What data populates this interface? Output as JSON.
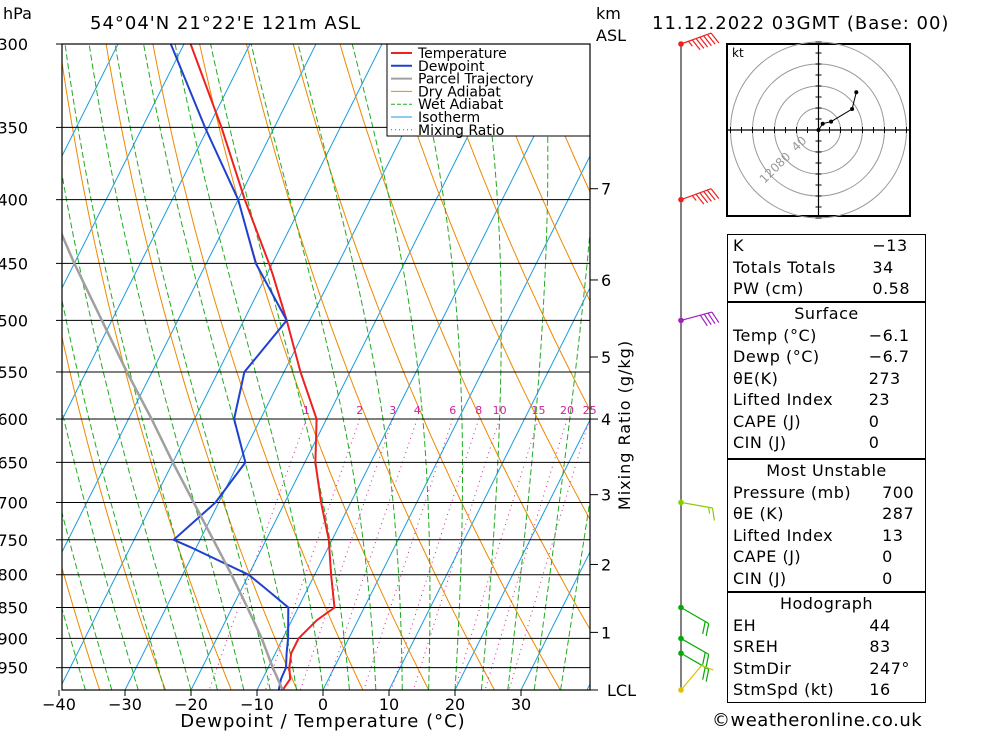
{
  "header": {
    "hpa_label": "hPa",
    "location": "54°04'N  21°22'E  121m  ASL",
    "km_label": "km",
    "asl_label": "ASL",
    "datetime": "11.12.2022  03GMT  (Base: 00)"
  },
  "chart_data": {
    "type": "skew-t log-p",
    "xlabel": "Dewpoint / Temperature (°C)",
    "ylabel_right": "Mixing Ratio (g/kg)",
    "pressure_ticks": [
      300,
      350,
      400,
      450,
      500,
      550,
      600,
      650,
      700,
      750,
      800,
      850,
      900,
      950
    ],
    "temp_ticks": [
      -40,
      -30,
      -20,
      -10,
      0,
      10,
      20,
      30
    ],
    "temp_tick_labels": [
      "−40",
      "−30",
      "−20",
      "−10",
      "0",
      "10",
      "20",
      "30"
    ],
    "km_ticks": [
      {
        "label": "7",
        "p": 392
      },
      {
        "label": "6",
        "p": 464
      },
      {
        "label": "5",
        "p": 535
      },
      {
        "label": "4",
        "p": 600
      },
      {
        "label": "3",
        "p": 690
      },
      {
        "label": "2",
        "p": 785
      },
      {
        "label": "1",
        "p": 890
      },
      {
        "label": "LCL",
        "p": 990
      }
    ],
    "mixing_ratio_labels": [
      "1",
      "2",
      "3",
      "4",
      "6",
      "8",
      "10",
      "15",
      "20",
      "25"
    ],
    "legend": [
      "Temperature",
      "Dewpoint",
      "Parcel Trajectory",
      "Dry Adiabat",
      "Wet Adiabat",
      "Isotherm",
      "Mixing Ratio"
    ],
    "series": [
      {
        "name": "Temperature",
        "color": "#ee2020",
        "points": [
          [
            990,
            -6.1
          ],
          [
            970,
            -5.8
          ],
          [
            950,
            -6.8
          ],
          [
            925,
            -7.6
          ],
          [
            900,
            -7.6
          ],
          [
            870,
            -6.2
          ],
          [
            850,
            -4.5
          ],
          [
            800,
            -7.5
          ],
          [
            750,
            -10.5
          ],
          [
            700,
            -14.5
          ],
          [
            650,
            -18.4
          ],
          [
            600,
            -21.5
          ],
          [
            550,
            -27.5
          ],
          [
            500,
            -33.5
          ],
          [
            460,
            -39
          ],
          [
            450,
            -40.5
          ],
          [
            400,
            -49
          ],
          [
            350,
            -58
          ],
          [
            300,
            -69
          ]
        ]
      },
      {
        "name": "Dewpoint",
        "color": "#2040d0",
        "points": [
          [
            990,
            -6.7
          ],
          [
            970,
            -7.2
          ],
          [
            950,
            -7.3
          ],
          [
            925,
            -8.3
          ],
          [
            900,
            -9.2
          ],
          [
            850,
            -11.5
          ],
          [
            820,
            -16.5
          ],
          [
            800,
            -20
          ],
          [
            760,
            -31
          ],
          [
            750,
            -34
          ],
          [
            700,
            -30.5
          ],
          [
            650,
            -29
          ],
          [
            600,
            -34
          ],
          [
            550,
            -36
          ],
          [
            500,
            -33.5
          ],
          [
            450,
            -42.5
          ],
          [
            400,
            -50
          ],
          [
            350,
            -60.5
          ],
          [
            300,
            -72
          ]
        ]
      },
      {
        "name": "Parcel Trajectory",
        "color": "#a0a0a0",
        "points": [
          [
            990,
            -6.1
          ],
          [
            950,
            -9.3
          ],
          [
            900,
            -13.2
          ],
          [
            850,
            -17.7
          ],
          [
            800,
            -22.6
          ],
          [
            750,
            -28
          ],
          [
            700,
            -33.8
          ],
          [
            650,
            -40
          ],
          [
            600,
            -46.5
          ],
          [
            550,
            -53.8
          ],
          [
            500,
            -61.5
          ],
          [
            450,
            -70
          ],
          [
            400,
            -79
          ],
          [
            350,
            -89
          ],
          [
            300,
            -100
          ]
        ]
      }
    ],
    "wind_barbs": [
      {
        "p": 300,
        "dir": 250,
        "kt": 65,
        "color": "#ee2020"
      },
      {
        "p": 400,
        "dir": 250,
        "kt": 55,
        "color": "#ee2020"
      },
      {
        "p": 500,
        "dir": 255,
        "kt": 40,
        "color": "#a020c0"
      },
      {
        "p": 700,
        "dir": 280,
        "kt": 15,
        "color": "#88cc00"
      },
      {
        "p": 850,
        "dir": 300,
        "kt": 20,
        "color": "#00aa00"
      },
      {
        "p": 900,
        "dir": 300,
        "kt": 20,
        "color": "#00aa00"
      },
      {
        "p": 925,
        "dir": 300,
        "kt": 20,
        "color": "#00aa00"
      },
      {
        "p": 990,
        "dir": 220,
        "kt": 10,
        "color": "#e0c000"
      }
    ],
    "hodograph": {
      "unit_label": "kt",
      "ring_labels": [
        "40",
        "80",
        "120"
      ],
      "points_kt": [
        [
          0,
          0
        ],
        [
          2,
          3
        ],
        [
          6,
          4
        ],
        [
          16,
          10
        ],
        [
          18,
          18
        ]
      ]
    }
  },
  "indices": {
    "general": [
      {
        "label": "K",
        "value": "−13"
      },
      {
        "label": "Totals Totals",
        "value": "34"
      },
      {
        "label": "PW (cm)",
        "value": "0.58"
      }
    ],
    "surface": {
      "title": "Surface",
      "rows": [
        {
          "label": "Temp (°C)",
          "value": "−6.1"
        },
        {
          "label": "Dewp (°C)",
          "value": "−6.7"
        },
        {
          "label": "θE(K)",
          "value": "273"
        },
        {
          "label": "Lifted Index",
          "value": "23"
        },
        {
          "label": "CAPE (J)",
          "value": "0"
        },
        {
          "label": "CIN (J)",
          "value": "0"
        }
      ]
    },
    "most_unstable": {
      "title": "Most Unstable",
      "rows": [
        {
          "label": "Pressure (mb)",
          "value": "700"
        },
        {
          "label": "θE (K)",
          "value": "287"
        },
        {
          "label": "Lifted Index",
          "value": "13"
        },
        {
          "label": "CAPE (J)",
          "value": "0"
        },
        {
          "label": "CIN (J)",
          "value": "0"
        }
      ]
    },
    "hodograph": {
      "title": "Hodograph",
      "rows": [
        {
          "label": "EH",
          "value": "44"
        },
        {
          "label": "SREH",
          "value": "83"
        },
        {
          "label": "StmDir",
          "value": "247°"
        },
        {
          "label": "StmSpd (kt)",
          "value": "16"
        }
      ]
    }
  },
  "footer": {
    "credit": "©weatheronline.co.uk"
  },
  "colors": {
    "temperature": "#ee2020",
    "dewpoint": "#2040d0",
    "parcel": "#a0a0a0",
    "dry_adiabat": "#ee8800",
    "wet_adiabat": "#22aa22",
    "isotherm": "#1e9be0",
    "mixing_ratio": "#cc2299"
  }
}
